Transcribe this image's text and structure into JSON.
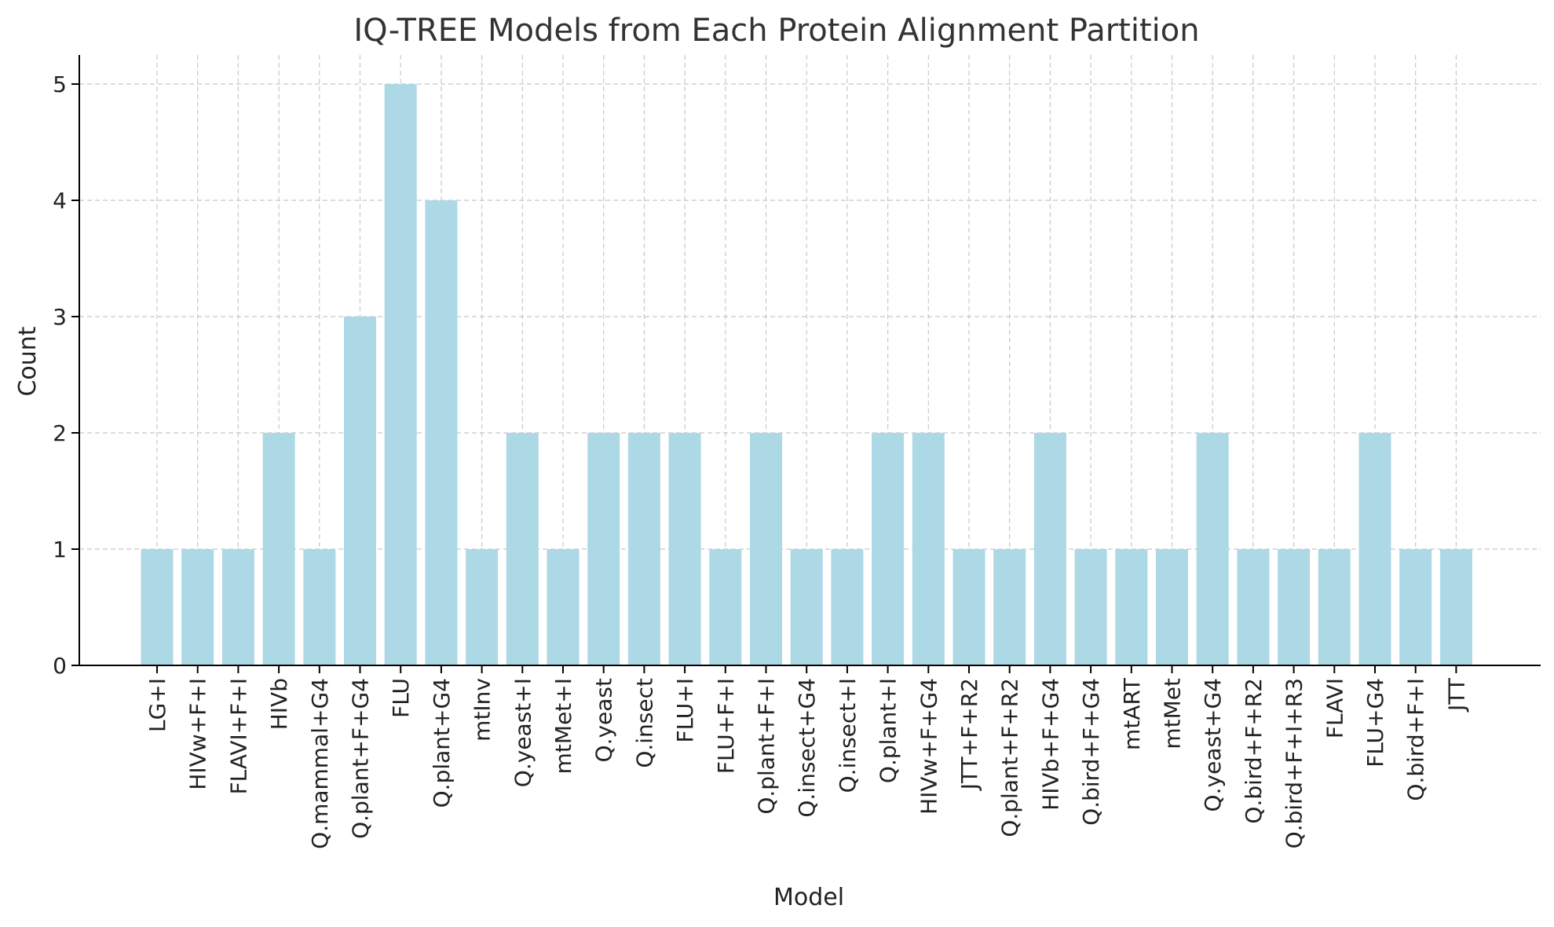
{
  "chart_data": {
    "type": "bar",
    "title": "IQ-TREE Models from Each Protein Alignment Partition",
    "xlabel": "Model",
    "ylabel": "Count",
    "ylim": [
      0,
      5.25
    ],
    "yticks": [
      0,
      1,
      2,
      3,
      4,
      5
    ],
    "grid": true,
    "colors": {
      "bar": "#add8e6",
      "grid": "#c8c8c8",
      "axis": "#000000"
    },
    "categories": [
      "LG+I",
      "HIVw+F+I",
      "FLAVI+F+I",
      "HIVb",
      "Q.mammal+G4",
      "Q.plant+F+G4",
      "FLU",
      "Q.plant+G4",
      "mtInv",
      "Q.yeast+I",
      "mtMet+I",
      "Q.yeast",
      "Q.insect",
      "FLU+I",
      "FLU+F+I",
      "Q.plant+F+I",
      "Q.insect+G4",
      "Q.insect+I",
      "Q.plant+I",
      "HIVw+F+G4",
      "JTT+F+R2",
      "Q.plant+F+R2",
      "HIVb+F+G4",
      "Q.bird+F+G4",
      "mtART",
      "mtMet",
      "Q.yeast+G4",
      "Q.bird+F+R2",
      "Q.bird+F+I+R3",
      "FLAVI",
      "FLU+G4",
      "Q.bird+F+I",
      "JTT"
    ],
    "values": [
      1,
      1,
      1,
      2,
      1,
      3,
      5,
      4,
      1,
      2,
      1,
      2,
      2,
      2,
      1,
      2,
      1,
      1,
      2,
      2,
      1,
      1,
      2,
      1,
      1,
      1,
      2,
      1,
      1,
      1,
      2,
      1,
      1
    ]
  }
}
